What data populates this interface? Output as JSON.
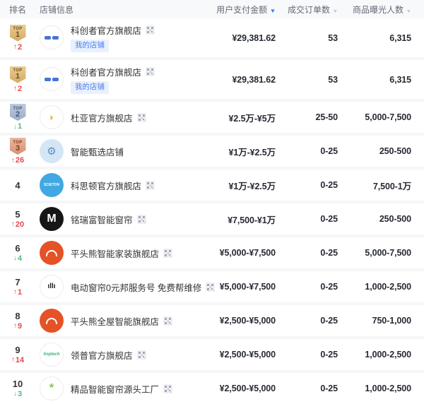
{
  "header": {
    "columns": [
      {
        "label": "排名",
        "sort": "none"
      },
      {
        "label": "店铺信息",
        "sort": "none"
      },
      {
        "label": "用户支付金额",
        "sort": "descending"
      },
      {
        "label": "成交订单数",
        "sort": "inactive"
      },
      {
        "label": "商品曝光人数",
        "sort": "inactive"
      }
    ]
  },
  "colors": {
    "accent_blue": "#4a7df0",
    "trend_up_red": "#e8484d",
    "trend_down_green": "#57b97e",
    "badge_gold": "#d2aa62",
    "badge_silver": "#9cadc7",
    "badge_bronze": "#d69174"
  },
  "rows": [
    {
      "rank": "1",
      "rank_prefix": "TOP",
      "badge": "top1",
      "trend_dir": "up",
      "trend_value": "2",
      "store": "科创者官方旗舰店",
      "my_store": "我的店铺",
      "has_qr": true,
      "logo": {
        "variant": "pills",
        "bg": "#ffffff",
        "fg": "#4a72d8",
        "border": true,
        "text": "科创者"
      },
      "payment": "¥29,381.62",
      "orders": "53",
      "exposure": "6,315"
    },
    {
      "rank": "1",
      "rank_prefix": "TOP",
      "badge": "top1",
      "trend_dir": "up",
      "trend_value": "2",
      "store": "科创者官方旗舰店",
      "my_store": "我的店铺",
      "has_qr": true,
      "logo": {
        "variant": "pills",
        "bg": "#ffffff",
        "fg": "#4a72d8",
        "border": true,
        "text": "科创者"
      },
      "payment": "¥29,381.62",
      "orders": "53",
      "exposure": "6,315"
    },
    {
      "rank": "2",
      "rank_prefix": "TOP",
      "badge": "top2",
      "trend_dir": "down",
      "trend_value": "1",
      "store": "杜亚官方旗舰店",
      "my_store": null,
      "has_qr": true,
      "logo": {
        "variant": "text",
        "bg": "#ffffff",
        "fg": "#f4b840",
        "border": true,
        "text": "◗",
        "size": 15
      },
      "payment": "¥2.5万-¥5万",
      "orders": "25-50",
      "exposure": "5,000-7,500"
    },
    {
      "rank": "3",
      "rank_prefix": "TOP",
      "badge": "top3",
      "trend_dir": "up",
      "trend_value": "26",
      "store": "智能甄选店铺",
      "my_store": null,
      "has_qr": false,
      "logo": {
        "variant": "text",
        "bg": "#d4e6f6",
        "fg": "#5b8fc7",
        "border": false,
        "text": "⚙",
        "size": 15
      },
      "payment": "¥1万-¥2.5万",
      "orders": "0-25",
      "exposure": "250-500"
    },
    {
      "rank": "4",
      "rank_prefix": null,
      "badge": null,
      "trend_dir": null,
      "trend_value": null,
      "store": "科思顿官方旗舰店",
      "my_store": null,
      "has_qr": true,
      "logo": {
        "variant": "text",
        "bg": "#41a8e1",
        "fg": "#ffffff",
        "border": false,
        "text": "SCIETON",
        "size": 5
      },
      "payment": "¥1万-¥2.5万",
      "orders": "0-25",
      "exposure": "7,500-1万"
    },
    {
      "rank": "5",
      "rank_prefix": null,
      "badge": null,
      "trend_dir": "up",
      "trend_value": "20",
      "store": "铭瑞富智能窗帘",
      "my_store": null,
      "has_qr": true,
      "logo": {
        "variant": "text",
        "bg": "#161616",
        "fg": "#ffffff",
        "border": false,
        "text": "M",
        "size": 16
      },
      "payment": "¥7,500-¥1万",
      "orders": "0-25",
      "exposure": "250-500"
    },
    {
      "rank": "6",
      "rank_prefix": null,
      "badge": null,
      "trend_dir": "down",
      "trend_value": "4",
      "store": "平头熊智能家装旗舰店",
      "my_store": null,
      "has_qr": true,
      "logo": {
        "variant": "arc",
        "bg": "#e55226",
        "fg": "#ffffff",
        "border": false
      },
      "payment": "¥5,000-¥7,500",
      "orders": "0-25",
      "exposure": "5,000-7,500"
    },
    {
      "rank": "7",
      "rank_prefix": null,
      "badge": null,
      "trend_dir": "up",
      "trend_value": "1",
      "store": "电动窗帘0元邦服务号 免费帮维修",
      "my_store": null,
      "has_qr": true,
      "logo": {
        "variant": "text",
        "bg": "#ffffff",
        "fg": "#1c1c1c",
        "border": true,
        "text": "ıllı",
        "size": 10
      },
      "payment": "¥5,000-¥7,500",
      "orders": "0-25",
      "exposure": "1,000-2,500"
    },
    {
      "rank": "8",
      "rank_prefix": null,
      "badge": null,
      "trend_dir": "up",
      "trend_value": "9",
      "store": "平头熊全屋智能旗舰店",
      "my_store": null,
      "has_qr": true,
      "logo": {
        "variant": "arc",
        "bg": "#e55226",
        "fg": "#ffffff",
        "border": false
      },
      "payment": "¥2,500-¥5,000",
      "orders": "0-25",
      "exposure": "750-1,000"
    },
    {
      "rank": "9",
      "rank_prefix": null,
      "badge": null,
      "trend_dir": "up",
      "trend_value": "14",
      "store": "领普官方旗舰店",
      "my_store": null,
      "has_qr": true,
      "logo": {
        "variant": "text",
        "bg": "#ffffff",
        "fg": "#35b57a",
        "border": true,
        "text": "linptech",
        "size": 6,
        "italic": true
      },
      "payment": "¥2,500-¥5,000",
      "orders": "0-25",
      "exposure": "1,000-2,500"
    },
    {
      "rank": "10",
      "rank_prefix": null,
      "badge": null,
      "trend_dir": "down",
      "trend_value": "3",
      "store": "精品智能窗帘源头工厂",
      "my_store": null,
      "has_qr": true,
      "logo": {
        "variant": "text",
        "bg": "#ffffff",
        "fg": "#8bc34a",
        "border": true,
        "text": "*",
        "size": 16
      },
      "payment": "¥2,500-¥5,000",
      "orders": "0-25",
      "exposure": "1,000-2,500"
    }
  ]
}
